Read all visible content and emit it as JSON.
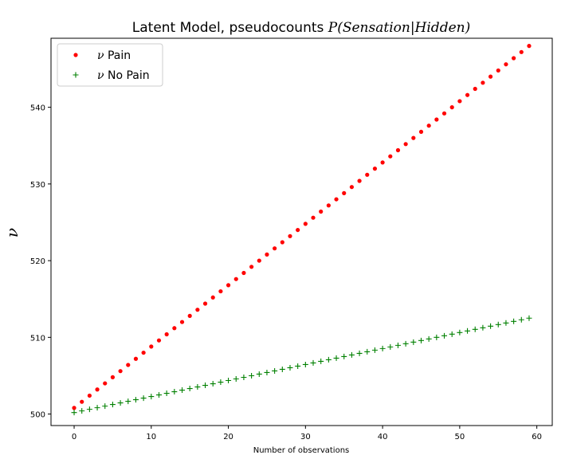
{
  "colors": {
    "pain": "#ff0000",
    "no_pain": "#008000",
    "axis": "#000000",
    "legend_border": "#cccccc"
  },
  "chart_data": {
    "type": "scatter",
    "title_prefix": "Latent Model, pseudocounts ",
    "title_math": "P(Sensation|Hidden)",
    "xlabel": "Number of observations",
    "ylabel": "ν",
    "xlim": [
      -3,
      62
    ],
    "ylim": [
      498.5,
      549
    ],
    "xticks": [
      0,
      10,
      20,
      30,
      40,
      50,
      60
    ],
    "yticks": [
      500,
      510,
      520,
      530,
      540
    ],
    "grid": false,
    "legend_position": "top-left",
    "series": [
      {
        "name": "ν Pain",
        "greek": "ν",
        "label": "Pain",
        "marker": "dot",
        "color": "#ff0000",
        "x_start": 0,
        "x_step": 1,
        "count": 60,
        "y_start": 500.8,
        "y_step": 0.8
      },
      {
        "name": "ν No Pain",
        "greek": "ν",
        "label": "No Pain",
        "marker": "plus",
        "color": "#008000",
        "x_start": 0,
        "x_step": 1,
        "count": 60,
        "y_start": 500.2,
        "y_step": 0.2085
      }
    ]
  }
}
